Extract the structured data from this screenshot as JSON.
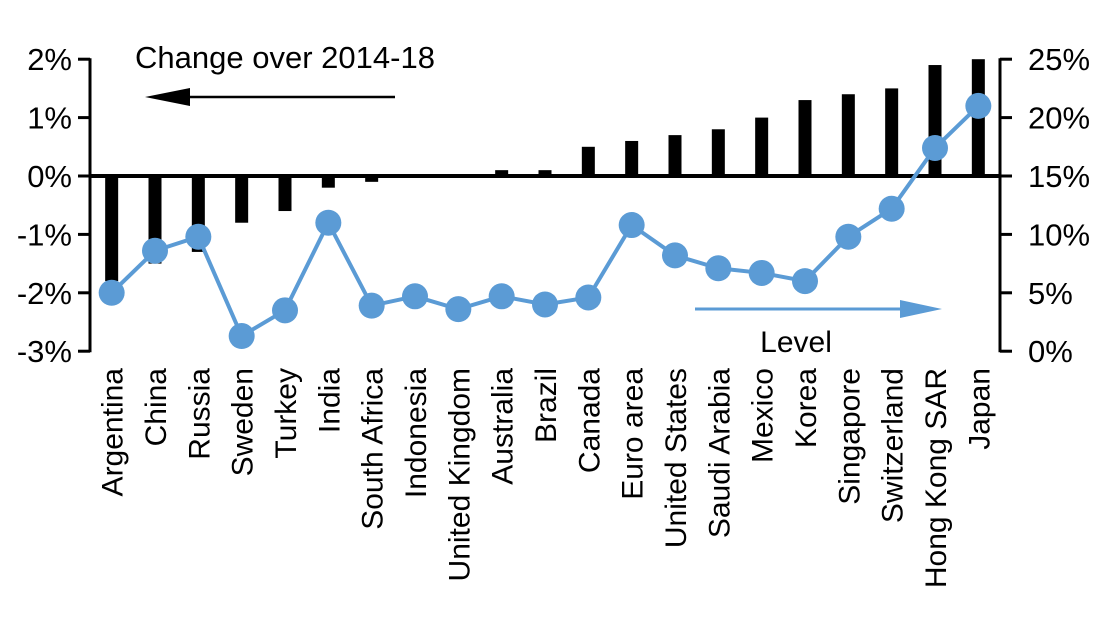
{
  "chart_data": {
    "type": "combo-bar-line-dual-axis",
    "categories": [
      "Argentina",
      "China",
      "Russia",
      "Sweden",
      "Turkey",
      "India",
      "South Africa",
      "Indonesia",
      "United Kingdom",
      "Australia",
      "Brazil",
      "Canada",
      "Euro area",
      "United States",
      "Saudi Arabia",
      "Mexico",
      "Korea",
      "Singapore",
      "Switzerland",
      "Hong Kong SAR",
      "Japan"
    ],
    "series": [
      {
        "name": "Change over 2014-18",
        "type": "bar",
        "axis": "left",
        "color": "#000000",
        "values": [
          -1.8,
          -1.5,
          -1.3,
          -0.8,
          -0.6,
          -0.2,
          -0.1,
          0.0,
          0.0,
          0.1,
          0.1,
          0.5,
          0.6,
          0.7,
          0.8,
          1.0,
          1.3,
          1.4,
          1.5,
          1.9,
          2.0
        ]
      },
      {
        "name": "Level",
        "type": "line",
        "axis": "right",
        "color": "#5B9BD5",
        "values": [
          5.0,
          8.6,
          9.8,
          1.3,
          3.5,
          11.0,
          3.9,
          4.7,
          3.6,
          4.7,
          4.0,
          4.6,
          10.8,
          8.2,
          7.1,
          6.7,
          6.0,
          9.8,
          12.2,
          17.4,
          21.0
        ]
      }
    ],
    "left_axis": {
      "tick_labels": [
        "2%",
        "1%",
        "0%",
        "-1%",
        "-2%",
        "-3%"
      ],
      "tick_values": [
        2,
        1,
        0,
        -1,
        -2,
        -3
      ],
      "min": -3,
      "max": 2
    },
    "right_axis": {
      "tick_labels": [
        "25%",
        "20%",
        "15%",
        "10%",
        "5%",
        "0%"
      ],
      "tick_values": [
        25,
        20,
        15,
        10,
        5,
        0
      ],
      "min": 0,
      "max": 25
    },
    "annotations": {
      "left_series_label": "Change over 2014-18",
      "right_series_label": "Level",
      "left_arrow_direction": "left",
      "right_arrow_direction": "right",
      "left_arrow_color": "#000000",
      "right_arrow_color": "#5B9BD5"
    },
    "grid": "off",
    "legend_position": "none",
    "zero_line": "thick-black-at-left-0-right-15"
  }
}
